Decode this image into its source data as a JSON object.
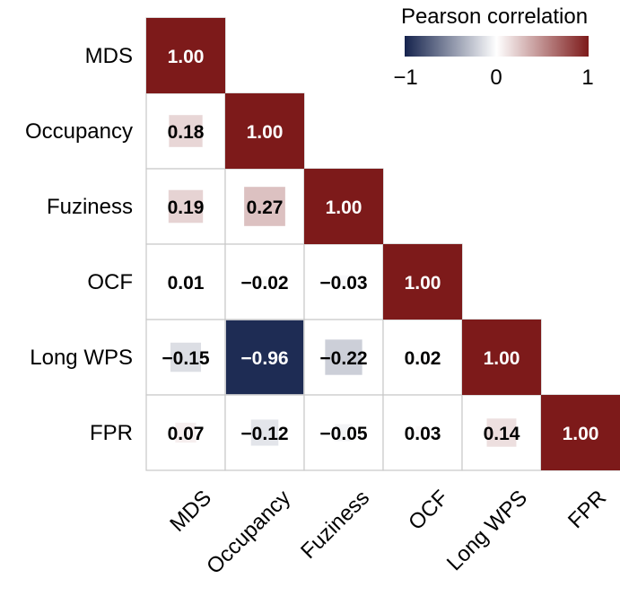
{
  "chart_data": {
    "type": "heatmap",
    "layout": "lower-triangle",
    "variables": [
      "MDS",
      "Occupancy",
      "Fuziness",
      "OCF",
      "Long WPS",
      "FPR"
    ],
    "values": [
      [
        1.0
      ],
      [
        0.18,
        1.0
      ],
      [
        0.19,
        0.27,
        1.0
      ],
      [
        0.01,
        -0.02,
        -0.03,
        1.0
      ],
      [
        -0.15,
        -0.96,
        -0.22,
        0.02,
        1.0
      ],
      [
        0.07,
        -0.12,
        -0.05,
        0.03,
        0.14,
        1.0
      ]
    ],
    "labels": [
      [
        "1.00"
      ],
      [
        "0.18",
        "1.00"
      ],
      [
        "0.19",
        "0.27",
        "1.00"
      ],
      [
        "0.01",
        "−0.02",
        "−0.03",
        "1.00"
      ],
      [
        "−0.15",
        "−0.96",
        "−0.22",
        "0.02",
        "1.00"
      ],
      [
        "0.07",
        "−0.12",
        "−0.05",
        "0.03",
        "0.14",
        "1.00"
      ]
    ],
    "legend": {
      "title": "Pearson correlation",
      "ticks": [
        "−1",
        "0",
        "1"
      ],
      "range": [
        -1,
        1
      ],
      "placement": "top-right"
    },
    "colors": {
      "negative": "#15234d",
      "neutral": "#ffffff",
      "positive": "#7d1a1a",
      "grid": "#c8c8c8",
      "light_text": "#ffffff",
      "dark_text": "#000000"
    }
  }
}
